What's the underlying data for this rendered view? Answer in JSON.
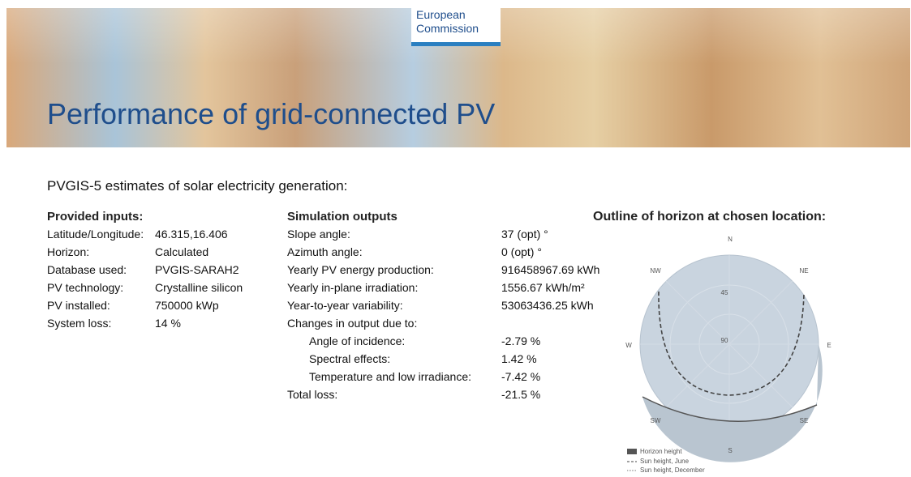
{
  "header": {
    "logo": [
      "European",
      "Commission"
    ],
    "title": "Performance of grid-connected PV"
  },
  "subtitle": "PVGIS-5 estimates of solar electricity generation:",
  "inputs": {
    "heading": "Provided inputs:",
    "rows": [
      [
        "Latitude/Longitude:",
        "46.315,16.406"
      ],
      [
        "Horizon:",
        "Calculated"
      ],
      [
        "Database used:",
        "PVGIS-SARAH2"
      ],
      [
        "PV technology:",
        "Crystalline silicon"
      ],
      [
        "PV installed:",
        "750000 kWp"
      ],
      [
        "System loss:",
        "14 %"
      ]
    ]
  },
  "outputs": {
    "heading": "Simulation outputs",
    "rows": [
      [
        "Slope angle:",
        "37 (opt) °"
      ],
      [
        "Azimuth angle:",
        "0 (opt) °"
      ],
      [
        "Yearly PV energy production:",
        "916458967.69 kWh"
      ],
      [
        "Yearly in-plane irradiation:",
        "1556.67 kWh/m²"
      ],
      [
        "Year-to-year variability:",
        "53063436.25 kWh"
      ],
      [
        "Changes in output due to:",
        null
      ],
      [
        "Angle of incidence:",
        "-2.79 %"
      ],
      [
        "Spectral effects:",
        "1.42 %"
      ],
      [
        "Temperature and low irradiance:",
        "-7.42 %"
      ],
      [
        "Total loss:",
        "-21.5 %"
      ]
    ]
  },
  "horizon": {
    "title": "Outline of horizon at chosen location:",
    "compass": {
      "N": "N",
      "NE": "NE",
      "E": "E",
      "SE": "SE",
      "S": "S",
      "SW": "SW",
      "W": "W",
      "NW": "NW"
    },
    "rings": [
      "45",
      "90"
    ],
    "legend": [
      "Horizon height",
      "Sun height, June",
      "Sun height, December"
    ]
  }
}
